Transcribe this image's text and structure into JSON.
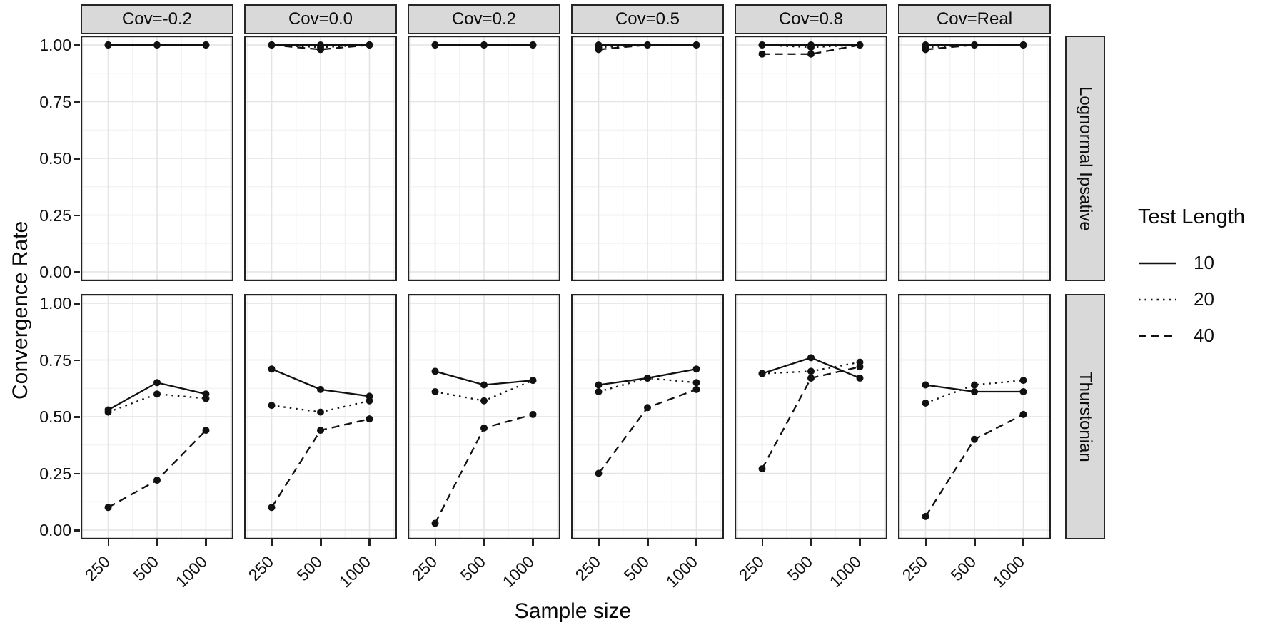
{
  "chart_data": {
    "type": "line",
    "title": "",
    "xlabel": "Sample size",
    "ylabel": "Convergence Rate",
    "x": [
      250,
      500,
      1000
    ],
    "x_scale": "log",
    "x_tick_labels": [
      "250",
      "500",
      "1000"
    ],
    "y_ticks": [
      "1.00",
      "0.75",
      "0.50",
      "0.25",
      "0.00"
    ],
    "y_tick_values": [
      1.0,
      0.75,
      0.5,
      0.25,
      0.0
    ],
    "ylim": [
      0,
      1
    ],
    "grid": "on",
    "line_color": "#111111",
    "strip_bg": "#d9d9d9",
    "legend_position": "right",
    "col_facets": [
      "Cov=-0.2",
      "Cov=0.0",
      "Cov=0.2",
      "Cov=0.5",
      "Cov=0.8",
      "Cov=Real"
    ],
    "row_facets": [
      "Lognormal Ipsative",
      "Thurstonian"
    ],
    "legend": {
      "title": "Test Length",
      "entries": [
        {
          "label": "10",
          "linetype": "solid"
        },
        {
          "label": "20",
          "linetype": "dotted"
        },
        {
          "label": "40",
          "linetype": "dashed"
        }
      ]
    },
    "panels": [
      {
        "row": "Lognormal Ipsative",
        "col": "Cov=-0.2",
        "series": [
          {
            "name": "10",
            "values": [
              1.0,
              1.0,
              1.0
            ]
          },
          {
            "name": "20",
            "values": [
              1.0,
              1.0,
              1.0
            ]
          },
          {
            "name": "40",
            "values": [
              1.0,
              1.0,
              1.0
            ]
          }
        ]
      },
      {
        "row": "Lognormal Ipsative",
        "col": "Cov=0.0",
        "series": [
          {
            "name": "10",
            "values": [
              1.0,
              1.0,
              1.0
            ]
          },
          {
            "name": "20",
            "values": [
              1.0,
              0.99,
              1.0
            ]
          },
          {
            "name": "40",
            "values": [
              1.0,
              0.98,
              1.0
            ]
          }
        ]
      },
      {
        "row": "Lognormal Ipsative",
        "col": "Cov=0.2",
        "series": [
          {
            "name": "10",
            "values": [
              1.0,
              1.0,
              1.0
            ]
          },
          {
            "name": "20",
            "values": [
              1.0,
              1.0,
              1.0
            ]
          },
          {
            "name": "40",
            "values": [
              1.0,
              1.0,
              1.0
            ]
          }
        ]
      },
      {
        "row": "Lognormal Ipsative",
        "col": "Cov=0.5",
        "series": [
          {
            "name": "10",
            "values": [
              1.0,
              1.0,
              1.0
            ]
          },
          {
            "name": "20",
            "values": [
              0.99,
              1.0,
              1.0
            ]
          },
          {
            "name": "40",
            "values": [
              0.98,
              1.0,
              1.0
            ]
          }
        ]
      },
      {
        "row": "Lognormal Ipsative",
        "col": "Cov=0.8",
        "series": [
          {
            "name": "10",
            "values": [
              1.0,
              1.0,
              1.0
            ]
          },
          {
            "name": "20",
            "values": [
              1.0,
              0.99,
              1.0
            ]
          },
          {
            "name": "40",
            "values": [
              0.96,
              0.96,
              1.0
            ]
          }
        ]
      },
      {
        "row": "Lognormal Ipsative",
        "col": "Cov=Real",
        "series": [
          {
            "name": "10",
            "values": [
              1.0,
              1.0,
              1.0
            ]
          },
          {
            "name": "20",
            "values": [
              0.99,
              1.0,
              1.0
            ]
          },
          {
            "name": "40",
            "values": [
              0.98,
              1.0,
              1.0
            ]
          }
        ]
      },
      {
        "row": "Thurstonian",
        "col": "Cov=-0.2",
        "series": [
          {
            "name": "10",
            "values": [
              0.53,
              0.65,
              0.6
            ]
          },
          {
            "name": "20",
            "values": [
              0.52,
              0.6,
              0.58
            ]
          },
          {
            "name": "40",
            "values": [
              0.1,
              0.22,
              0.44
            ]
          }
        ]
      },
      {
        "row": "Thurstonian",
        "col": "Cov=0.0",
        "series": [
          {
            "name": "10",
            "values": [
              0.71,
              0.62,
              0.59
            ]
          },
          {
            "name": "20",
            "values": [
              0.55,
              0.52,
              0.57
            ]
          },
          {
            "name": "40",
            "values": [
              0.1,
              0.44,
              0.49
            ]
          }
        ]
      },
      {
        "row": "Thurstonian",
        "col": "Cov=0.2",
        "series": [
          {
            "name": "10",
            "values": [
              0.7,
              0.64,
              0.66
            ]
          },
          {
            "name": "20",
            "values": [
              0.61,
              0.57,
              0.66
            ]
          },
          {
            "name": "40",
            "values": [
              0.03,
              0.45,
              0.51
            ]
          }
        ]
      },
      {
        "row": "Thurstonian",
        "col": "Cov=0.5",
        "series": [
          {
            "name": "10",
            "values": [
              0.64,
              0.67,
              0.71
            ]
          },
          {
            "name": "20",
            "values": [
              0.61,
              0.67,
              0.65
            ]
          },
          {
            "name": "40",
            "values": [
              0.25,
              0.54,
              0.62
            ]
          }
        ]
      },
      {
        "row": "Thurstonian",
        "col": "Cov=0.8",
        "series": [
          {
            "name": "10",
            "values": [
              0.69,
              0.76,
              0.67
            ]
          },
          {
            "name": "20",
            "values": [
              0.69,
              0.7,
              0.74
            ]
          },
          {
            "name": "40",
            "values": [
              0.27,
              0.67,
              0.72
            ]
          }
        ]
      },
      {
        "row": "Thurstonian",
        "col": "Cov=Real",
        "series": [
          {
            "name": "10",
            "values": [
              0.64,
              0.61,
              0.61
            ]
          },
          {
            "name": "20",
            "values": [
              0.56,
              0.64,
              0.66
            ]
          },
          {
            "name": "40",
            "values": [
              0.06,
              0.4,
              0.51
            ]
          }
        ]
      }
    ]
  }
}
